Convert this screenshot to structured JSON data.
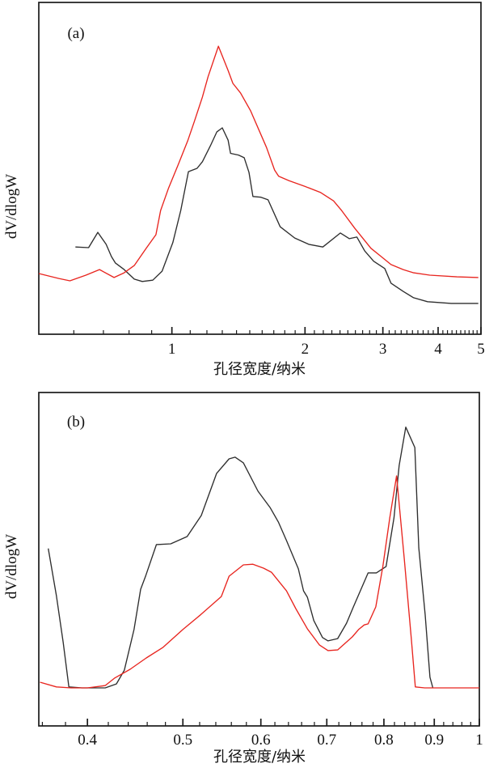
{
  "figure": {
    "background": "#ffffff",
    "axis_color": "#1a1a1a"
  },
  "chart_data": [
    {
      "type": "line",
      "panel": "(a)",
      "title": "",
      "xlabel": "孔径宽度/纳米",
      "ylabel": "dV/dlogW",
      "x_scale": "log",
      "xlim": [
        0.5,
        5.0
      ],
      "ylim": [
        0,
        1
      ],
      "grid": false,
      "legend": "none",
      "x_major_ticks": {
        "values": [
          1,
          2,
          3,
          4,
          5
        ],
        "labels": [
          "1",
          "2",
          "3",
          "4",
          "5"
        ]
      },
      "x_minor_ticks": [
        0.6,
        0.7,
        0.8,
        0.9,
        1.1,
        1.2,
        1.3,
        1.4,
        1.5,
        1.6,
        1.7,
        1.8,
        1.9,
        2.1,
        2.2,
        2.3,
        2.4,
        2.5,
        2.6,
        2.7,
        2.8,
        2.9,
        3.1,
        3.2,
        3.3,
        3.4,
        3.5,
        3.6,
        3.7,
        3.8,
        3.9,
        4.1,
        4.2,
        4.3,
        4.4,
        4.5,
        4.6,
        4.7,
        4.8,
        4.9
      ],
      "y_ticks": [],
      "series": [
        {
          "name": "black-curve",
          "color": "#2e2e2e",
          "points": [
            [
              0.605,
              0.263
            ],
            [
              0.648,
              0.261
            ],
            [
              0.68,
              0.307
            ],
            [
              0.71,
              0.271
            ],
            [
              0.73,
              0.234
            ],
            [
              0.745,
              0.215
            ],
            [
              0.78,
              0.195
            ],
            [
              0.822,
              0.166
            ],
            [
              0.857,
              0.159
            ],
            [
              0.905,
              0.163
            ],
            [
              0.95,
              0.19
            ],
            [
              1.005,
              0.276
            ],
            [
              1.047,
              0.373
            ],
            [
              1.09,
              0.49
            ],
            [
              1.14,
              0.5
            ],
            [
              1.172,
              0.52
            ],
            [
              1.222,
              0.568
            ],
            [
              1.264,
              0.61
            ],
            [
              1.3,
              0.622
            ],
            [
              1.34,
              0.585
            ],
            [
              1.357,
              0.545
            ],
            [
              1.415,
              0.54
            ],
            [
              1.457,
              0.532
            ],
            [
              1.494,
              0.488
            ],
            [
              1.525,
              0.415
            ],
            [
              1.59,
              0.413
            ],
            [
              1.65,
              0.405
            ],
            [
              1.757,
              0.324
            ],
            [
              1.896,
              0.29
            ],
            [
              2.04,
              0.271
            ],
            [
              2.195,
              0.263
            ],
            [
              2.405,
              0.305
            ],
            [
              2.52,
              0.288
            ],
            [
              2.62,
              0.293
            ],
            [
              2.73,
              0.251
            ],
            [
              2.86,
              0.22
            ],
            [
              3.03,
              0.198
            ],
            [
              3.13,
              0.154
            ],
            [
              3.335,
              0.129
            ],
            [
              3.52,
              0.11
            ],
            [
              3.785,
              0.098
            ],
            [
              4.285,
              0.093
            ],
            [
              4.93,
              0.093
            ]
          ]
        },
        {
          "name": "red-curve",
          "color": "#e8251f",
          "points": [
            [
              0.5,
              0.183
            ],
            [
              0.555,
              0.168
            ],
            [
              0.588,
              0.161
            ],
            [
              0.639,
              0.178
            ],
            [
              0.686,
              0.195
            ],
            [
              0.74,
              0.171
            ],
            [
              0.78,
              0.185
            ],
            [
              0.822,
              0.207
            ],
            [
              0.875,
              0.259
            ],
            [
              0.92,
              0.3
            ],
            [
              0.943,
              0.373
            ],
            [
              0.983,
              0.441
            ],
            [
              1.034,
              0.512
            ],
            [
              1.087,
              0.585
            ],
            [
              1.124,
              0.641
            ],
            [
              1.172,
              0.715
            ],
            [
              1.207,
              0.776
            ],
            [
              1.274,
              0.868
            ],
            [
              1.34,
              0.795
            ],
            [
              1.374,
              0.756
            ],
            [
              1.43,
              0.727
            ],
            [
              1.507,
              0.673
            ],
            [
              1.637,
              0.563
            ],
            [
              1.707,
              0.495
            ],
            [
              1.743,
              0.476
            ],
            [
              1.84,
              0.463
            ],
            [
              1.995,
              0.446
            ],
            [
              2.17,
              0.427
            ],
            [
              2.32,
              0.402
            ],
            [
              2.42,
              0.373
            ],
            [
              2.59,
              0.32
            ],
            [
              2.82,
              0.259
            ],
            [
              2.975,
              0.234
            ],
            [
              3.13,
              0.21
            ],
            [
              3.335,
              0.195
            ],
            [
              3.52,
              0.185
            ],
            [
              3.83,
              0.178
            ],
            [
              4.41,
              0.173
            ],
            [
              4.93,
              0.171
            ]
          ]
        }
      ]
    },
    {
      "type": "line",
      "panel": "(b)",
      "title": "",
      "xlabel": "孔径宽度/纳米",
      "ylabel": "dV/dlogW",
      "x_scale": "log",
      "xlim": [
        0.357,
        1.0
      ],
      "ylim": [
        0,
        1
      ],
      "grid": false,
      "legend": "none",
      "x_major_ticks": {
        "values": [
          0.4,
          0.5,
          0.6,
          0.7,
          0.8,
          0.9,
          1.0
        ],
        "labels": [
          "0.4",
          "0.5",
          "0.6",
          "0.7",
          "0.8",
          "0.9",
          "1"
        ]
      },
      "x_minor_ticks": [
        0.36,
        0.38,
        0.42,
        0.44,
        0.46,
        0.48,
        0.52,
        0.54,
        0.56,
        0.58,
        0.62,
        0.64,
        0.66,
        0.68,
        0.72,
        0.74,
        0.76,
        0.78,
        0.82,
        0.84,
        0.86,
        0.88,
        0.92,
        0.94,
        0.96,
        0.98
      ],
      "y_ticks": [],
      "series": [
        {
          "name": "black-curve",
          "color": "#2e2e2e",
          "points": [
            [
              0.365,
              0.532
            ],
            [
              0.372,
              0.39
            ],
            [
              0.378,
              0.25
            ],
            [
              0.383,
              0.117
            ],
            [
              0.395,
              0.114
            ],
            [
              0.417,
              0.114
            ],
            [
              0.428,
              0.126
            ],
            [
              0.436,
              0.167
            ],
            [
              0.446,
              0.289
            ],
            [
              0.453,
              0.41
            ],
            [
              0.458,
              0.447
            ],
            [
              0.47,
              0.544
            ],
            [
              0.486,
              0.546
            ],
            [
              0.505,
              0.568
            ],
            [
              0.522,
              0.631
            ],
            [
              0.541,
              0.757
            ],
            [
              0.557,
              0.801
            ],
            [
              0.565,
              0.806
            ],
            [
              0.576,
              0.789
            ],
            [
              0.596,
              0.704
            ],
            [
              0.613,
              0.655
            ],
            [
              0.625,
              0.612
            ],
            [
              0.637,
              0.556
            ],
            [
              0.655,
              0.471
            ],
            [
              0.663,
              0.405
            ],
            [
              0.669,
              0.386
            ],
            [
              0.679,
              0.316
            ],
            [
              0.693,
              0.265
            ],
            [
              0.702,
              0.255
            ],
            [
              0.718,
              0.262
            ],
            [
              0.733,
              0.308
            ],
            [
              0.745,
              0.357
            ],
            [
              0.771,
              0.459
            ],
            [
              0.786,
              0.459
            ],
            [
              0.804,
              0.478
            ],
            [
              0.819,
              0.624
            ],
            [
              0.829,
              0.781
            ],
            [
              0.842,
              0.896
            ],
            [
              0.86,
              0.835
            ],
            [
              0.868,
              0.534
            ],
            [
              0.881,
              0.333
            ],
            [
              0.891,
              0.146
            ],
            [
              0.897,
              0.114
            ]
          ]
        },
        {
          "name": "red-curve",
          "color": "#e8251f",
          "points": [
            [
              0.358,
              0.131
            ],
            [
              0.372,
              0.117
            ],
            [
              0.385,
              0.114
            ],
            [
              0.4,
              0.114
            ],
            [
              0.417,
              0.121
            ],
            [
              0.426,
              0.143
            ],
            [
              0.442,
              0.17
            ],
            [
              0.459,
              0.204
            ],
            [
              0.477,
              0.235
            ],
            [
              0.5,
              0.289
            ],
            [
              0.521,
              0.333
            ],
            [
              0.547,
              0.388
            ],
            [
              0.557,
              0.449
            ],
            [
              0.576,
              0.483
            ],
            [
              0.589,
              0.485
            ],
            [
              0.604,
              0.473
            ],
            [
              0.615,
              0.461
            ],
            [
              0.637,
              0.405
            ],
            [
              0.651,
              0.352
            ],
            [
              0.669,
              0.291
            ],
            [
              0.688,
              0.243
            ],
            [
              0.702,
              0.226
            ],
            [
              0.718,
              0.228
            ],
            [
              0.743,
              0.267
            ],
            [
              0.754,
              0.289
            ],
            [
              0.764,
              0.303
            ],
            [
              0.771,
              0.306
            ],
            [
              0.785,
              0.357
            ],
            [
              0.798,
              0.478
            ],
            [
              0.811,
              0.624
            ],
            [
              0.824,
              0.75
            ],
            [
              0.839,
              0.502
            ],
            [
              0.853,
              0.26
            ],
            [
              0.861,
              0.117
            ],
            [
              0.88,
              0.114
            ],
            [
              1.0,
              0.114
            ]
          ]
        }
      ]
    }
  ]
}
